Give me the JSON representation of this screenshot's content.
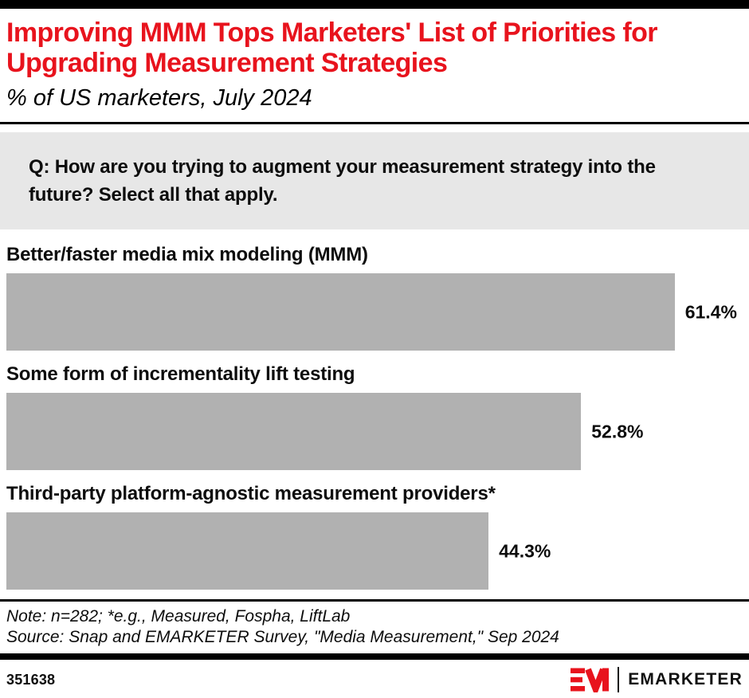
{
  "header": {
    "title": "Improving MMM Tops Marketers' List of Priorities for Upgrading Measurement Strategies",
    "subtitle": "% of US marketers, July 2024"
  },
  "question": "Q: How are you trying to augment your measurement strategy into the future? Select all that apply.",
  "bars": [
    {
      "label": "Better/faster media mix modeling (MMM)",
      "value": 61.4,
      "display": "61.4%"
    },
    {
      "label": "Some form of incrementality lift testing",
      "value": 52.8,
      "display": "52.8%"
    },
    {
      "label": "Third-party platform-agnostic measurement providers*",
      "value": 44.3,
      "display": "44.3%"
    }
  ],
  "chart_data": {
    "type": "bar",
    "orientation": "horizontal",
    "title": "Improving MMM Tops Marketers' List of Priorities for Upgrading Measurement Strategies",
    "subtitle": "% of US marketers, July 2024",
    "categories": [
      "Better/faster media mix modeling (MMM)",
      "Some form of incrementality lift testing",
      "Third-party platform-agnostic measurement providers*"
    ],
    "values": [
      61.4,
      52.8,
      44.3
    ],
    "data_labels": [
      "61.4%",
      "52.8%",
      "44.3%"
    ],
    "unit": "%",
    "xlim": [
      0,
      68
    ],
    "grid": false,
    "legend": false,
    "bar_color": "#b1b1b1"
  },
  "footnote": {
    "note": "Note: n=282; *e.g., Measured, Fospha, LiftLab",
    "source": "Source: Snap and EMARKETER Survey, \"Media Measurement,\" Sep 2024"
  },
  "footer": {
    "chart_id": "351638",
    "brand_wordmark": "EMARKETER"
  },
  "colors": {
    "accent_red": "#e8131d",
    "bar_gray": "#b1b1b1",
    "question_bg": "#e7e7e7",
    "text_black": "#111111"
  }
}
